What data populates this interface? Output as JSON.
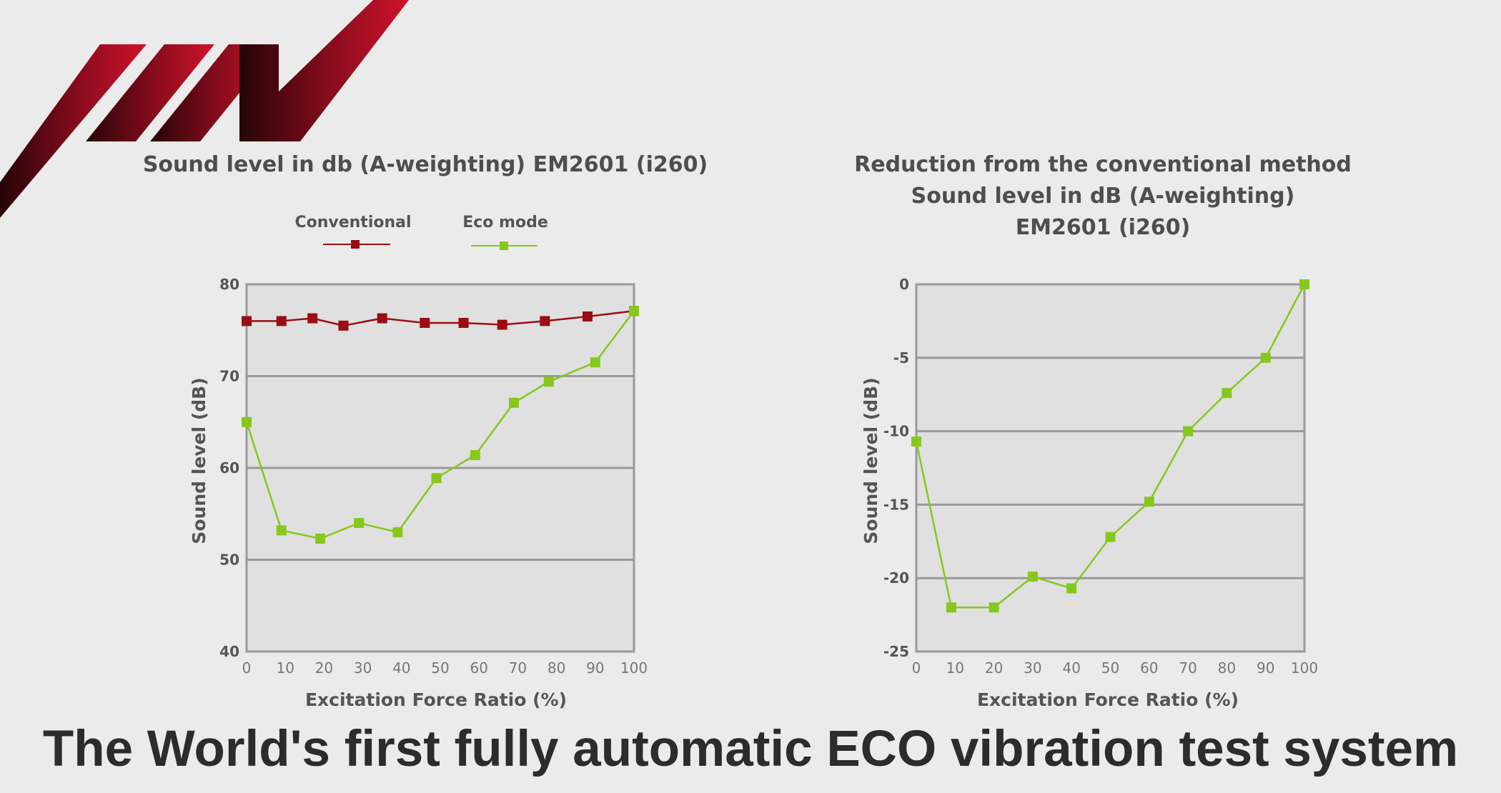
{
  "colors": {
    "background": "#ebebeb",
    "plot_background": "#e0e0e0",
    "conventional": "#9b0d13",
    "eco_mode": "#86c81b",
    "logo_dark": "#2a0508",
    "logo_red": "#d0122c"
  },
  "logo": {
    "icon": "company-logo-stripes"
  },
  "chart_data": [
    {
      "type": "line",
      "title": "Sound level in db (A-weighting) EM2601 (i260)",
      "xlabel": "Excitation Force Ratio (%)",
      "ylabel": "Sound level (dB)",
      "xlim": [
        0,
        100
      ],
      "ylim": [
        40,
        80
      ],
      "x_ticks": [
        0,
        10,
        20,
        30,
        40,
        50,
        60,
        70,
        80,
        90,
        100
      ],
      "y_ticks": [
        40,
        50,
        60,
        70,
        80
      ],
      "grid": "horizontal",
      "legend": "top",
      "series": [
        {
          "name": "Conventional",
          "color": "#9b0d13",
          "x": [
            0,
            9,
            17,
            25,
            35,
            46,
            56,
            66,
            77,
            88,
            100
          ],
          "y": [
            76.0,
            76.0,
            76.3,
            75.5,
            76.3,
            75.8,
            75.8,
            75.6,
            76.0,
            76.5,
            77.1
          ]
        },
        {
          "name": "Eco mode",
          "color": "#86c81b",
          "x": [
            0,
            9,
            19,
            29,
            39,
            49,
            59,
            69,
            78,
            90,
            100
          ],
          "y": [
            65.0,
            53.2,
            52.3,
            54.0,
            53.0,
            58.9,
            61.4,
            67.1,
            69.4,
            71.5,
            77.1
          ]
        }
      ]
    },
    {
      "type": "line",
      "title": "Reduction from the conventional method Sound level in dB (A-weighting) EM2601 (i260)",
      "title_lines": [
        "Reduction from the conventional method",
        "Sound level in dB (A-weighting)",
        "EM2601 (i260)"
      ],
      "xlabel": "Excitation Force Ratio (%)",
      "ylabel": "Sound level (dB)",
      "xlim": [
        0,
        100
      ],
      "ylim": [
        -25,
        0
      ],
      "x_ticks": [
        0,
        10,
        20,
        30,
        40,
        50,
        60,
        70,
        80,
        90,
        100
      ],
      "y_ticks": [
        -25,
        -20,
        -15,
        -10,
        -5,
        0
      ],
      "grid": "horizontal",
      "series": [
        {
          "color": "#86c81b",
          "x": [
            0,
            9,
            20,
            30,
            40,
            50,
            60,
            70,
            80,
            90,
            100
          ],
          "y": [
            -10.7,
            -22.0,
            -22.0,
            -19.9,
            -20.7,
            -17.2,
            -14.8,
            -10.0,
            -7.4,
            -5.0,
            0.0
          ]
        }
      ]
    }
  ],
  "footer": {
    "headline": "The World's first fully automatic ECO vibration test system"
  }
}
